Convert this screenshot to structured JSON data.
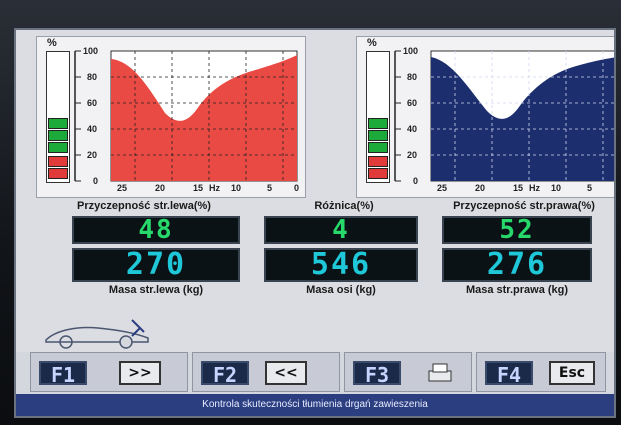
{
  "left_chart": {
    "unit_label": "%",
    "y_ticks": [
      "100",
      "80",
      "60",
      "40",
      "20",
      "0"
    ],
    "x_ticks": [
      "25",
      "20",
      "15",
      "10",
      "5",
      "0"
    ],
    "x_unit": "Hz",
    "fill_color": "#e94a44",
    "gauge": {
      "green_segments": 3,
      "red_segments": 2
    }
  },
  "right_chart": {
    "unit_label": "%",
    "y_ticks": [
      "100",
      "80",
      "60",
      "40",
      "20",
      "0"
    ],
    "x_ticks": [
      "25",
      "20",
      "15",
      "10",
      "5",
      "0"
    ],
    "x_unit": "Hz",
    "fill_color": "#1d2e6e",
    "gauge": {
      "green_segments": 3,
      "red_segments": 2
    }
  },
  "stats": {
    "left_adhesion_label": "Przyczepność str.lewa(%)",
    "diff_label": "Różnica(%)",
    "right_adhesion_label": "Przyczepność str.prawa(%)",
    "left_adhesion_value": "48",
    "diff_value": "4",
    "right_adhesion_value": "52",
    "left_mass_value": "270",
    "axle_mass_value": "546",
    "right_mass_value": "276",
    "left_mass_label": "Masa str.lewa (kg)",
    "axle_mass_label": "Masa osi (kg)",
    "right_mass_label": "Masa str.prawa (kg)"
  },
  "function_keys": [
    {
      "key": "F1",
      "action": ">>"
    },
    {
      "key": "F2",
      "action": "<<"
    },
    {
      "key": "F3",
      "action": "printer-icon"
    },
    {
      "key": "F4",
      "action": "Esc"
    }
  ],
  "status_bar": "Kontrola skuteczności tłumienia drgań zawieszenia",
  "colors": {
    "lcd_green": "#27d86a",
    "lcd_cyan": "#1fc8d8",
    "status_bg": "#2b3e80"
  }
}
